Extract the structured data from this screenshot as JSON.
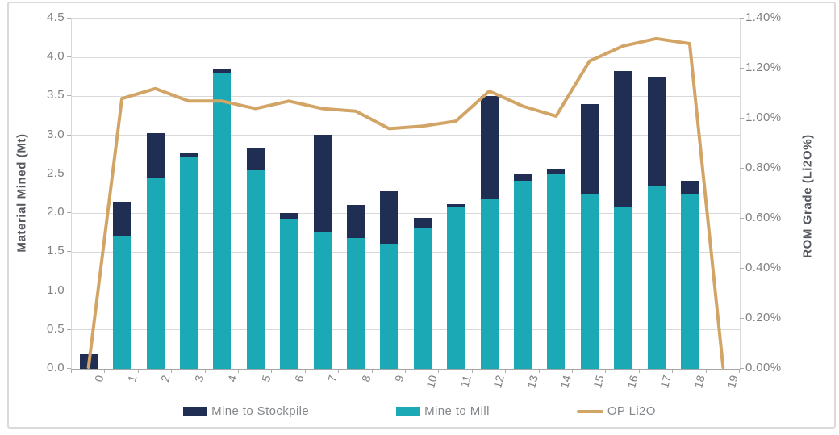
{
  "chart_data": {
    "type": "combo_stacked_bar_line",
    "categories": [
      "0",
      "1",
      "2",
      "3",
      "4",
      "5",
      "6",
      "7",
      "8",
      "9",
      "10",
      "11",
      "12",
      "13",
      "14",
      "15",
      "16",
      "17",
      "18",
      "19"
    ],
    "series": [
      {
        "name": "Mine to Stockpile",
        "type": "bar",
        "stack": "top",
        "color": "#1f2e52",
        "axis": "left",
        "values": [
          0.19,
          0.45,
          0.58,
          0.05,
          0.06,
          0.28,
          0.07,
          1.25,
          0.42,
          0.67,
          0.14,
          0.04,
          1.33,
          0.09,
          0.06,
          1.16,
          1.75,
          1.4,
          0.18,
          0.0
        ]
      },
      {
        "name": "Mine to Mill",
        "type": "bar",
        "stack": "bottom",
        "color": "#1ca9b6",
        "axis": "left",
        "values": [
          0.0,
          1.7,
          2.45,
          2.72,
          3.79,
          2.55,
          1.93,
          1.76,
          1.68,
          1.61,
          1.8,
          2.08,
          2.18,
          2.42,
          2.5,
          2.24,
          2.08,
          2.34,
          2.24,
          0.0
        ]
      },
      {
        "name": "OP Li2O",
        "type": "line",
        "color": "#d2a567",
        "axis": "right",
        "values_percent": [
          0.0,
          1.08,
          1.12,
          1.07,
          1.07,
          1.04,
          1.07,
          1.04,
          1.03,
          0.96,
          0.97,
          0.99,
          1.11,
          1.05,
          1.01,
          1.23,
          1.29,
          1.32,
          1.3,
          0.0
        ]
      }
    ],
    "left_axis": {
      "title": "Material Mined (Mt)",
      "min": 0,
      "max": 4.5,
      "step": 0.5,
      "tick_labels": [
        "0.0",
        "0.5",
        "1.0",
        "1.5",
        "2.0",
        "2.5",
        "3.0",
        "3.5",
        "4.0",
        "4.5"
      ]
    },
    "right_axis": {
      "title": "ROM Grade (Li2O%)",
      "min": 0,
      "max": 1.4,
      "step": 0.2,
      "tick_labels": [
        "0.00%",
        "0.20%",
        "0.40%",
        "0.60%",
        "0.80%",
        "1.00%",
        "1.20%",
        "1.40%"
      ]
    },
    "legend_position": "bottom",
    "grid": "horizontal",
    "palette": {
      "gridline": "#d9d9d9",
      "axis_line": "#a6a6a6",
      "tick_text": "#7f8184",
      "title_text": "#55585e",
      "legend_text": "#84878a",
      "frame_border": "#dadada"
    }
  }
}
